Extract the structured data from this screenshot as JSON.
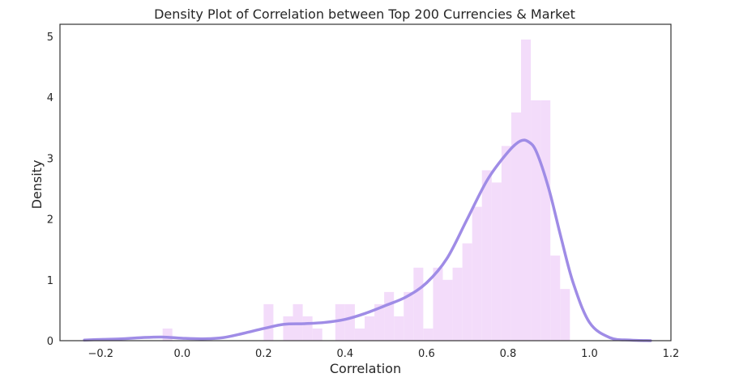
{
  "chart_data": {
    "type": "bar",
    "subtype": "histogram-with-kde",
    "title": "Density Plot of Correlation between Top 200 Currencies & Market",
    "xlabel": "Correlation",
    "ylabel": "Density",
    "xlim": [
      -0.3,
      1.2
    ],
    "ylim": [
      0,
      5.2
    ],
    "xticks": [
      -0.2,
      0.0,
      0.2,
      0.4,
      0.6,
      0.8,
      1.0,
      1.2
    ],
    "xtick_labels": [
      "−0.2",
      "0.0",
      "0.2",
      "0.4",
      "0.6",
      "0.8",
      "1.0",
      "1.2"
    ],
    "yticks": [
      0,
      1,
      2,
      3,
      4,
      5
    ],
    "ytick_labels": [
      "0",
      "1",
      "2",
      "3",
      "4",
      "5"
    ],
    "grid": false,
    "colors": {
      "bars": "#f3dcfa",
      "kde": "#9f8ce6",
      "frame": "#333333"
    },
    "histogram": {
      "bin_edges": [
        -0.048,
        -0.024,
        0.2,
        0.224,
        0.248,
        0.272,
        0.296,
        0.32,
        0.344,
        0.376,
        0.4,
        0.424,
        0.448,
        0.472,
        0.496,
        0.52,
        0.544,
        0.568,
        0.592,
        0.616,
        0.64,
        0.664,
        0.688,
        0.712,
        0.736,
        0.76,
        0.784,
        0.808,
        0.832,
        0.856,
        0.88,
        0.904,
        0.928,
        0.952,
        0.96
      ],
      "densities": [
        0.2,
        0,
        0.6,
        0,
        0.4,
        0.6,
        0.4,
        0.2,
        0,
        0.6,
        0.6,
        0.2,
        0.4,
        0.6,
        0.8,
        0.4,
        0.8,
        1.2,
        0.2,
        1.2,
        1.0,
        1.2,
        1.6,
        2.2,
        2.8,
        2.6,
        3.2,
        3.75,
        4.95,
        3.95,
        3.95,
        1.4,
        0.85,
        0
      ]
    },
    "kde": {
      "x": [
        -0.24,
        -0.2,
        -0.15,
        -0.1,
        -0.05,
        0.0,
        0.05,
        0.1,
        0.15,
        0.2,
        0.25,
        0.3,
        0.35,
        0.4,
        0.45,
        0.5,
        0.55,
        0.6,
        0.65,
        0.7,
        0.75,
        0.8,
        0.83,
        0.85,
        0.87,
        0.9,
        0.93,
        0.96,
        1.0,
        1.05,
        1.1,
        1.15
      ],
      "y": [
        0.01,
        0.02,
        0.03,
        0.05,
        0.06,
        0.04,
        0.03,
        0.05,
        0.12,
        0.2,
        0.27,
        0.28,
        0.3,
        0.35,
        0.45,
        0.58,
        0.72,
        0.95,
        1.35,
        2.0,
        2.65,
        3.1,
        3.28,
        3.27,
        3.1,
        2.5,
        1.7,
        0.95,
        0.3,
        0.05,
        0.01,
        0.0
      ]
    }
  }
}
